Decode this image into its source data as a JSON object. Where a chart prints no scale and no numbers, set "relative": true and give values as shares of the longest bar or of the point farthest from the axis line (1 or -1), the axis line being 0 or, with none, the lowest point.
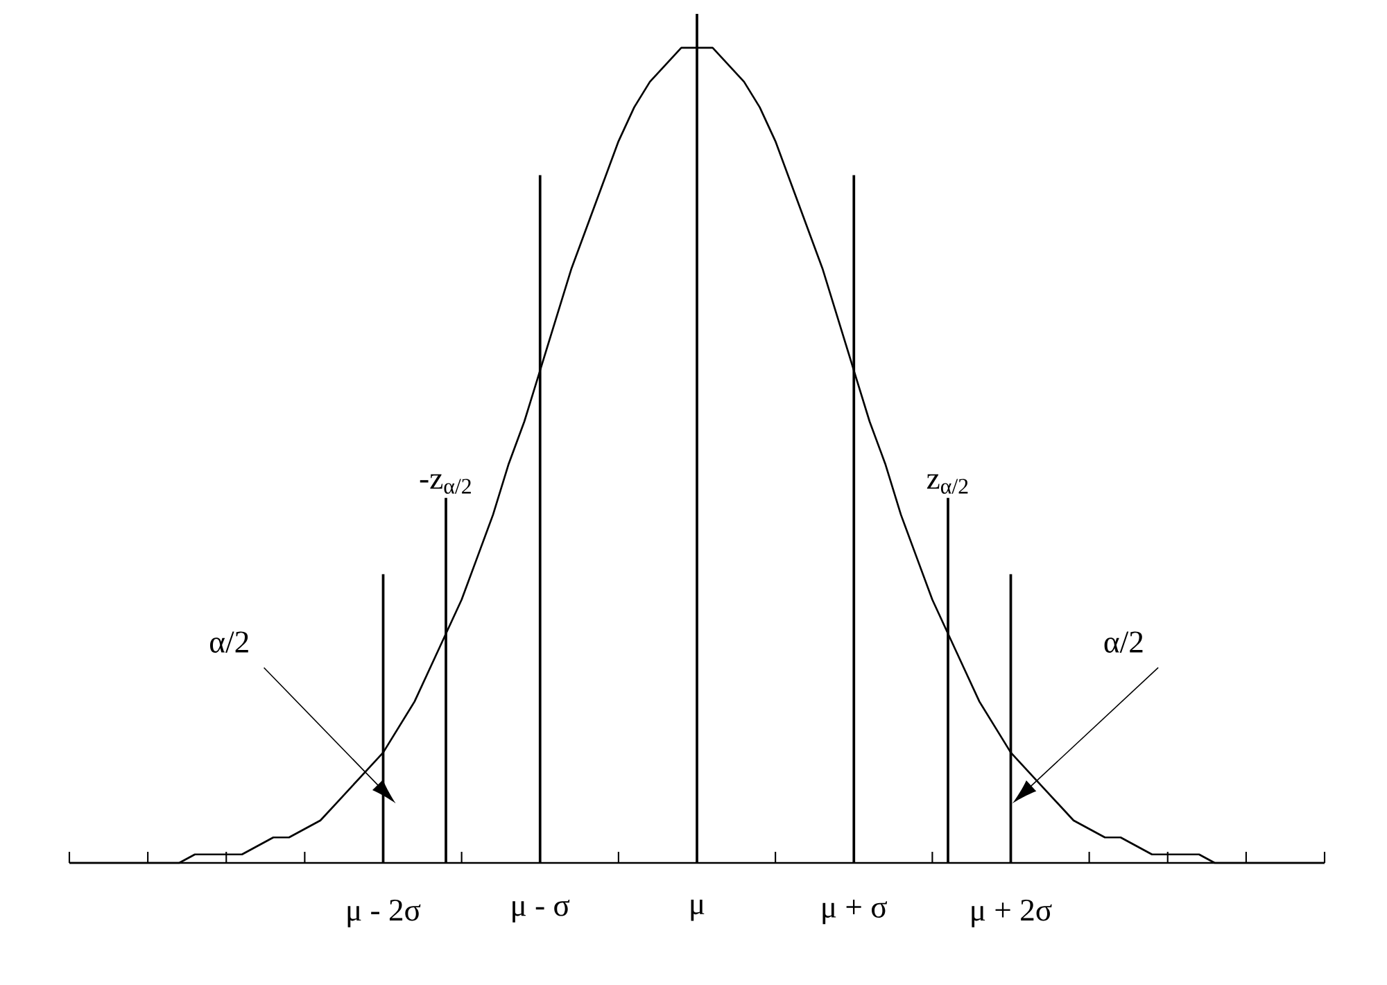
{
  "chart_data": {
    "type": "line",
    "relative": true,
    "marker": "none",
    "categories": [
      null,
      null,
      null,
      null,
      null,
      null,
      null,
      null,
      null,
      null,
      null,
      null,
      null,
      null,
      null,
      null,
      null,
      null,
      null,
      null,
      "μ - 2σ",
      null,
      null,
      null,
      null,
      null,
      null,
      null,
      null,
      null,
      "μ - σ",
      null,
      null,
      null,
      null,
      null,
      null,
      null,
      null,
      null,
      "μ",
      null,
      null,
      null,
      null,
      null,
      null,
      null,
      null,
      null,
      "μ + σ",
      null,
      null,
      null,
      null,
      null,
      null,
      null,
      null,
      null,
      "μ + 2σ",
      null,
      null,
      null,
      null,
      null,
      null,
      null,
      null,
      null,
      null,
      null,
      null,
      null,
      null,
      null,
      null,
      null,
      null,
      null,
      null
    ],
    "series": [
      {
        "color": "#000000",
        "line_style": "solid",
        "values": [
          0.0,
          0.0,
          0.0,
          0.0,
          0.0,
          0.0,
          0.0,
          0.0,
          0.01,
          0.01,
          0.01,
          0.01,
          0.02,
          0.03,
          0.03,
          0.04,
          0.05,
          0.07,
          0.09,
          0.11,
          0.13,
          0.16,
          0.19,
          0.23,
          0.27,
          0.31,
          0.36,
          0.41,
          0.47,
          0.52,
          0.58,
          0.64,
          0.7,
          0.75,
          0.8,
          0.85,
          0.89,
          0.92,
          0.94,
          0.96,
          0.96,
          0.96,
          0.94,
          0.92,
          0.89,
          0.85,
          0.8,
          0.75,
          0.7,
          0.64,
          0.58,
          0.52,
          0.47,
          0.41,
          0.36,
          0.31,
          0.27,
          0.23,
          0.19,
          0.16,
          0.13,
          0.11,
          0.09,
          0.07,
          0.05,
          0.04,
          0.03,
          0.03,
          0.02,
          0.01,
          0.01,
          0.01,
          0.01,
          0.0,
          0.0,
          0.0,
          0.0,
          0.0,
          0.0,
          0.0,
          0.0
        ]
      },
      {
        "type": "bar",
        "color": "#000000",
        "values": [
          null,
          null,
          null,
          null,
          null,
          null,
          null,
          null,
          null,
          null,
          null,
          null,
          null,
          null,
          null,
          null,
          null,
          null,
          null,
          null,
          0.34,
          null,
          null,
          null,
          null,
          null,
          null,
          null,
          null,
          null,
          0.81,
          null,
          null,
          null,
          null,
          null,
          null,
          null,
          null,
          null,
          1.0,
          null,
          null,
          null,
          null,
          null,
          null,
          null,
          null,
          null,
          0.81,
          null,
          null,
          null,
          null,
          null,
          null,
          null,
          null,
          null,
          0.34,
          null,
          null,
          null,
          null,
          null,
          null,
          null,
          null,
          null,
          null,
          null,
          null,
          null,
          null,
          null,
          null,
          null,
          null,
          null,
          null
        ]
      },
      {
        "type": "bar",
        "color": "#000000",
        "line_style": "solid",
        "values": [
          null,
          null,
          null,
          null,
          null,
          null,
          null,
          null,
          null,
          null,
          null,
          null,
          null,
          null,
          null,
          null,
          null,
          null,
          null,
          null,
          null,
          null,
          null,
          null,
          0.43,
          null,
          null,
          null,
          null,
          null,
          null,
          null,
          null,
          null,
          null,
          null,
          null,
          null,
          null,
          null,
          null,
          null,
          null,
          null,
          null,
          null,
          null,
          null,
          null,
          null,
          null,
          null,
          null,
          null,
          null,
          null,
          0.43,
          null,
          null,
          null,
          null,
          null,
          null,
          null,
          null,
          null,
          null,
          null,
          null,
          null,
          null,
          null,
          null,
          null,
          null,
          null,
          null,
          null,
          null,
          null,
          null
        ]
      }
    ],
    "annotations": [
      "-z$_{α/2}$",
      "z$_{α/2}$",
      "α/2",
      "α/2"
    ]
  }
}
